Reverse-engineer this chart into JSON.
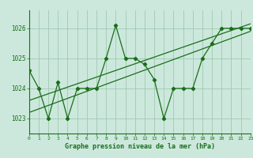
{
  "title": "Graphe pression niveau de la mer (hPa)",
  "hours": [
    0,
    1,
    2,
    3,
    4,
    5,
    6,
    7,
    8,
    9,
    10,
    11,
    12,
    13,
    14,
    15,
    16,
    17,
    18,
    19,
    20,
    21,
    22,
    23
  ],
  "pressure": [
    1024.6,
    1024.0,
    1023.0,
    1024.2,
    1023.0,
    1024.0,
    1024.0,
    1024.0,
    1025.0,
    1026.1,
    1025.0,
    1025.0,
    1024.8,
    1024.3,
    1023.0,
    1024.0,
    1024.0,
    1024.0,
    1025.0,
    1025.5,
    1026.0,
    1026.0,
    1026.0,
    1026.0
  ],
  "trend_line1": [
    [
      0,
      1023.2
    ],
    [
      23,
      1025.9
    ]
  ],
  "trend_line2": [
    [
      0,
      1023.6
    ],
    [
      23,
      1026.15
    ]
  ],
  "line_color": "#1a6e1a",
  "bg_color": "#cce8dc",
  "grid_color": "#a0c8b0",
  "text_color": "#1a6e1a",
  "ylim": [
    1022.5,
    1026.6
  ],
  "yticks": [
    1023,
    1024,
    1025,
    1026
  ],
  "xlim": [
    0,
    23
  ]
}
